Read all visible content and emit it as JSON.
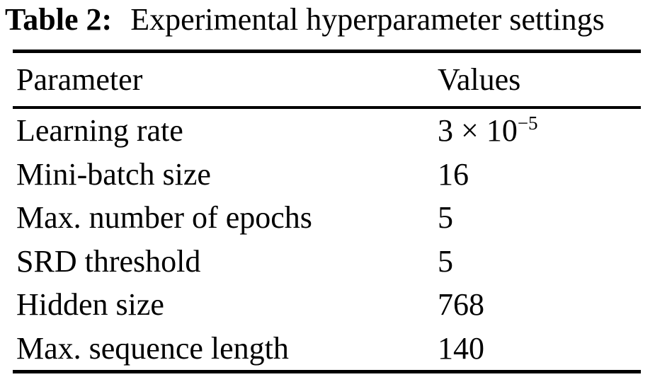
{
  "caption": {
    "label": "Table 2:",
    "title": "Experimental hyperparameter settings"
  },
  "table": {
    "headers": {
      "parameter": "Parameter",
      "values": "Values"
    },
    "rows": [
      {
        "param": "Learning rate",
        "value": "3 × 10",
        "value_sup": "−5"
      },
      {
        "param": "Mini-batch size",
        "value": "16"
      },
      {
        "param": "Max. number of epochs",
        "value": "5"
      },
      {
        "param": "SRD threshold",
        "value": "5"
      },
      {
        "param": "Hidden size",
        "value": "768"
      },
      {
        "param": "Max. sequence length",
        "value": "140"
      }
    ]
  },
  "colors": {
    "text": "#000000",
    "background": "#ffffff",
    "rule": "#000000"
  },
  "chart_data": {
    "type": "table",
    "title": "Table 2: Experimental hyperparameter settings",
    "columns": [
      "Parameter",
      "Values"
    ],
    "rows": [
      [
        "Learning rate",
        "3 × 10⁻⁵"
      ],
      [
        "Mini-batch size",
        "16"
      ],
      [
        "Max. number of epochs",
        "5"
      ],
      [
        "SRD threshold",
        "5"
      ],
      [
        "Hidden size",
        "768"
      ],
      [
        "Max. sequence length",
        "140"
      ]
    ]
  }
}
